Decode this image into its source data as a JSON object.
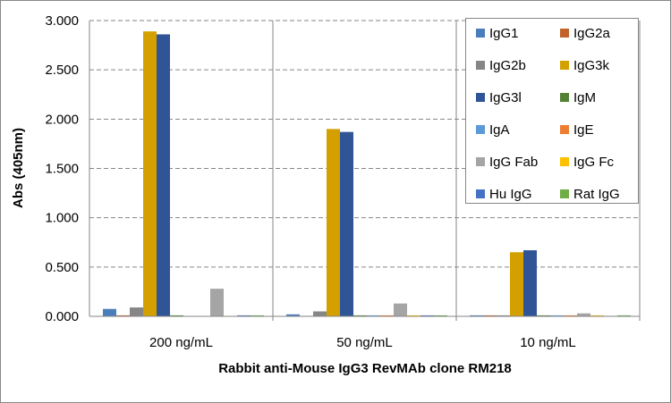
{
  "chart_data": {
    "type": "bar",
    "title": "",
    "xlabel": "Rabbit anti-Mouse  IgG3 RevMAb clone RM218",
    "ylabel": "Abs (405nm)",
    "ylim": [
      0,
      3
    ],
    "yticks": [
      "0.000",
      "0.500",
      "1.000",
      "1.500",
      "2.000",
      "2.500",
      "3.000"
    ],
    "grid": "horizontal dashed",
    "legend_position": "top-right",
    "categories": [
      "200 ng/mL",
      "50 ng/mL",
      "10 ng/mL"
    ],
    "series": [
      {
        "name": "IgG1",
        "color": "#4a7ebb",
        "values": [
          0.075,
          0.02,
          0.01
        ]
      },
      {
        "name": "IgG2a",
        "color": "#c0622a",
        "values": [
          0.01,
          0.005,
          0.01
        ]
      },
      {
        "name": "IgG2b",
        "color": "#868686",
        "values": [
          0.09,
          0.05,
          0.01
        ]
      },
      {
        "name": "IgG3k",
        "color": "#d4a000",
        "values": [
          2.89,
          1.9,
          0.65
        ]
      },
      {
        "name": "IgG3l",
        "color": "#2f5597",
        "values": [
          2.86,
          1.87,
          0.67
        ]
      },
      {
        "name": "IgM",
        "color": "#548235",
        "values": [
          0.01,
          0.01,
          0.01
        ]
      },
      {
        "name": "IgA",
        "color": "#5b9bd5",
        "values": [
          0.0,
          0.01,
          0.01
        ]
      },
      {
        "name": "IgE",
        "color": "#ed7d31",
        "values": [
          0.0,
          0.01,
          0.01
        ]
      },
      {
        "name": "IgG Fab",
        "color": "#a5a5a5",
        "values": [
          0.28,
          0.13,
          0.03
        ]
      },
      {
        "name": "IgG Fc",
        "color": "#ffc000",
        "values": [
          0.0,
          0.01,
          0.01
        ]
      },
      {
        "name": "Hu IgG",
        "color": "#4472c4",
        "values": [
          0.01,
          0.01,
          0.005
        ]
      },
      {
        "name": "Rat IgG",
        "color": "#70ad47",
        "values": [
          0.01,
          0.01,
          0.01
        ]
      }
    ]
  }
}
